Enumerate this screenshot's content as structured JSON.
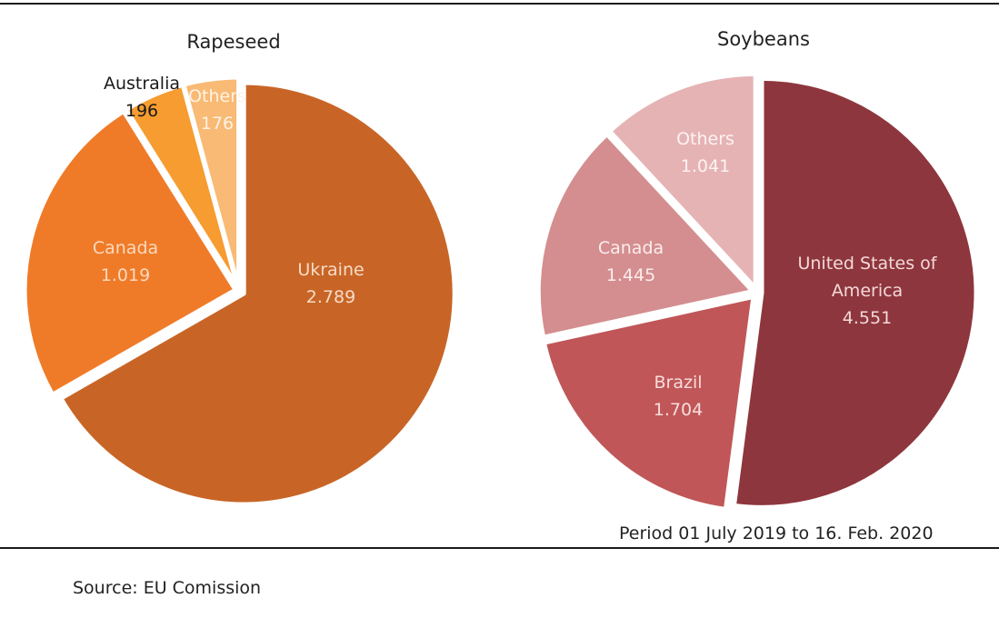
{
  "chart_data": [
    {
      "type": "pie",
      "title": "Rapeseed",
      "slices": [
        {
          "label": "Ukraine",
          "value": 2789,
          "value_label": "2.789",
          "color": "#C86526",
          "label_color": "#F7DCC8"
        },
        {
          "label": "Canada",
          "value": 1019,
          "value_label": "1.019",
          "color": "#EF7B28",
          "label_color": "#FBD9BF"
        },
        {
          "label": "Australia",
          "value": 196,
          "value_label": "196",
          "color": "#F69C30",
          "label_color": "#1a1a1a"
        },
        {
          "label": "Others",
          "value": 176,
          "value_label": "176",
          "color": "#F8BA74",
          "label_color": "#FFF3E6"
        }
      ]
    },
    {
      "type": "pie",
      "title": "Soybeans",
      "slices": [
        {
          "label": "United States of America",
          "label_lines": [
            "United States of",
            "America"
          ],
          "value": 4551,
          "value_label": "4.551",
          "color": "#8E363D",
          "label_color": "#F3D9DA"
        },
        {
          "label": "Brazil",
          "value": 1704,
          "value_label": "1.704",
          "color": "#C05658",
          "label_color": "#F7DDDD"
        },
        {
          "label": "Canada",
          "value": 1445,
          "value_label": "1.445",
          "color": "#D48E8F",
          "label_color": "#FBEDED"
        },
        {
          "label": "Others",
          "value": 1041,
          "value_label": "1.041",
          "color": "#E6B3B4",
          "label_color": "#FDF3F3"
        }
      ]
    }
  ],
  "period_note": "Period 01 July 2019 to 16. Feb. 2020",
  "source_note": "Source:  EU Comission"
}
